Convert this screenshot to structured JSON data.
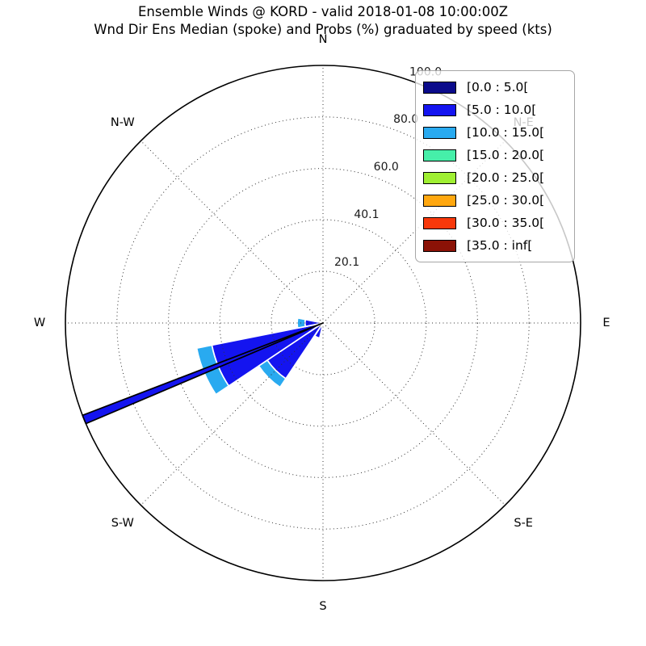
{
  "title": "Ensemble Winds @ KORD - valid 2018-01-08 10:00:00Z",
  "subtitle": "Wnd Dir Ens Median (spoke) and Probs (%) graduated by speed (kts)",
  "chart_data": {
    "type": "windrose",
    "station": "KORD",
    "valid_time": "2018-01-08 10:00:00Z",
    "units": "kts",
    "r_axis_units": "%",
    "r_max": 100,
    "radial_tick_angle_deg": 22.5,
    "radial_ticks": [
      {
        "value": 20.1,
        "label": "20.1"
      },
      {
        "value": 40.1,
        "label": "40.1"
      },
      {
        "value": 60.0,
        "label": "60.0"
      },
      {
        "value": 80.0,
        "label": "80.0"
      },
      {
        "value": 100.0,
        "label": "100.0"
      }
    ],
    "compass_labels": [
      "N",
      "N-E",
      "E",
      "S-E",
      "S",
      "S-W",
      "W",
      "N-W"
    ],
    "grid": {
      "style": "dotted",
      "spoke_step_deg": 45,
      "color": "#333333",
      "outer_circle_color": "#000000"
    },
    "speed_bins": [
      {
        "label": "[0.0 : 5.0[",
        "color": "#0b0b8b"
      },
      {
        "label": "[5.0 : 10.0[",
        "color": "#1414f0"
      },
      {
        "label": "[10.0 : 15.0[",
        "color": "#29aaf0"
      },
      {
        "label": "[15.0 : 20.0[",
        "color": "#46efa9"
      },
      {
        "label": "[20.0 : 25.0[",
        "color": "#9fef32"
      },
      {
        "label": "[25.0 : 30.0[",
        "color": "#ffa70f"
      },
      {
        "label": "[30.0 : 35.0[",
        "color": "#f8380b"
      },
      {
        "label": "[35.0 : inf[",
        "color": "#8b1206"
      }
    ],
    "petals": [
      {
        "sector": "WSW",
        "direction_deg": 247.5,
        "width_deg": 22.5,
        "segments": [
          {
            "speed_bin": "[5.0 : 10.0[",
            "bin_index": 1,
            "from_pct": 0,
            "to_pct": 44
          },
          {
            "speed_bin": "[10.0 : 15.0[",
            "bin_index": 2,
            "from_pct": 44,
            "to_pct": 50
          }
        ]
      },
      {
        "sector": "SW",
        "direction_deg": 225.0,
        "width_deg": 22.5,
        "segments": [
          {
            "speed_bin": "[5.0 : 10.0[",
            "bin_index": 1,
            "from_pct": 0,
            "to_pct": 26
          },
          {
            "speed_bin": "[10.0 : 15.0[",
            "bin_index": 2,
            "from_pct": 26,
            "to_pct": 30
          }
        ]
      },
      {
        "sector": "W",
        "direction_deg": 270.0,
        "width_deg": 22.5,
        "segments": [
          {
            "speed_bin": "[5.0 : 10.0[",
            "bin_index": 1,
            "from_pct": 0,
            "to_pct": 7
          },
          {
            "speed_bin": "[10.0 : 15.0[",
            "bin_index": 2,
            "from_pct": 7,
            "to_pct": 10
          }
        ]
      },
      {
        "sector": "SSW",
        "direction_deg": 202.5,
        "width_deg": 20.0,
        "segments": [
          {
            "speed_bin": "[5.0 : 10.0[",
            "bin_index": 1,
            "from_pct": 0,
            "to_pct": 6
          }
        ]
      }
    ],
    "median_spoke": {
      "meaning": "Wnd Dir Ens Median",
      "direction_deg": 248.0,
      "length_pct": 100,
      "width_deg": 2.0,
      "fill_color": "#1414f0",
      "edge_color": "#000000"
    },
    "legend_position": "upper-right"
  }
}
